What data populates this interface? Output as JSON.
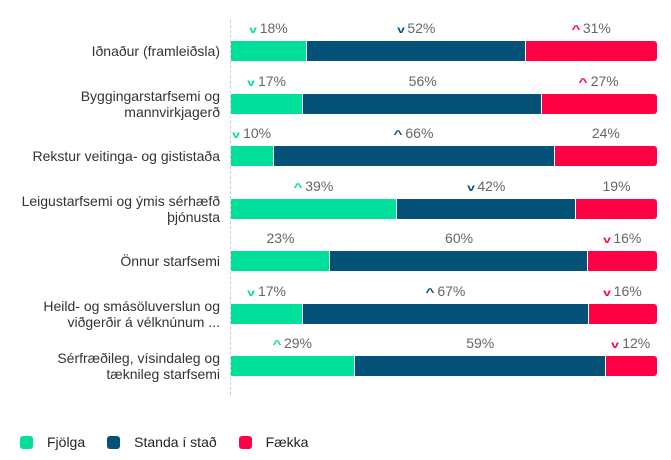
{
  "chart_data": {
    "type": "bar",
    "orientation": "horizontal",
    "stacked": true,
    "xlim": [
      0,
      100
    ],
    "categories": [
      "Iðnaður (framleiðsla)",
      "Byggingarstarfsemi og mannvirkjagerð",
      "Rekstur veitinga- og gististaða",
      "Leigustarfsemi og ýmis sérhæfð þjónusta",
      "Önnur starfsemi",
      "Heild- og smásöluverslun og viðgerðir á vélknúnum ...",
      "Sérfræðileg, vísindaleg og tæknileg starfsemi"
    ],
    "series": [
      {
        "name": "Fjölga",
        "color": "#00e09b",
        "values": [
          18,
          17,
          10,
          39,
          23,
          17,
          29
        ],
        "labels": [
          "18%",
          "17%",
          "10%",
          "39%",
          "23%",
          "17%",
          "29%"
        ],
        "arrows": [
          "down",
          "down",
          "down",
          "up",
          "",
          "down",
          "up"
        ]
      },
      {
        "name": "Standa í stað",
        "color": "#055278",
        "values": [
          52,
          56,
          66,
          42,
          60,
          67,
          59
        ],
        "labels": [
          "52%",
          "56%",
          "66%",
          "42%",
          "60%",
          "67%",
          "59%"
        ],
        "arrows": [
          "down",
          "",
          "up",
          "down",
          "",
          "up",
          ""
        ]
      },
      {
        "name": "Fækka",
        "color": "#ff0044",
        "values": [
          31,
          27,
          24,
          19,
          16,
          16,
          12
        ],
        "labels": [
          "31%",
          "27%",
          "24%",
          "19%",
          "16%",
          "16%",
          "12%"
        ],
        "arrows": [
          "up",
          "up",
          "",
          "",
          "down",
          "down",
          "down"
        ]
      }
    ],
    "legend": "bottom-left"
  }
}
